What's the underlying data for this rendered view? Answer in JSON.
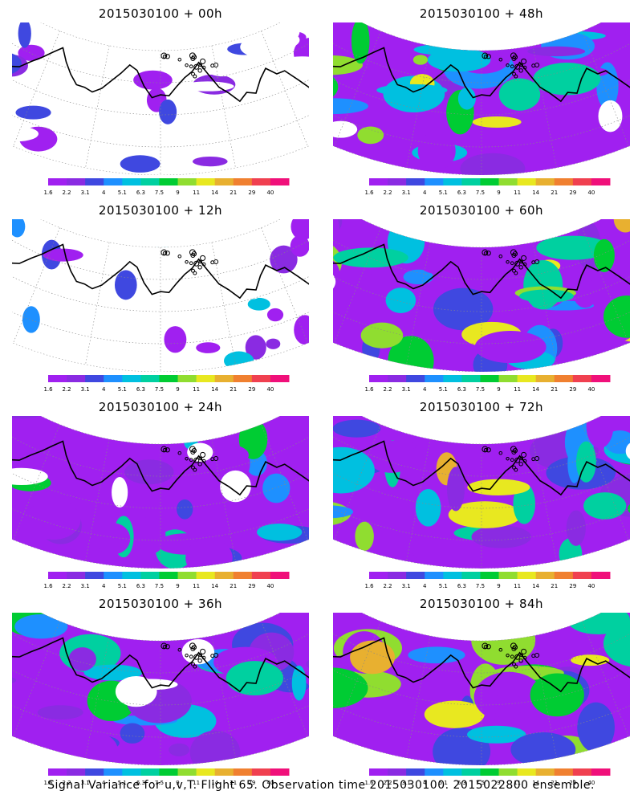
{
  "caption": "Signal Variance for u,v,T. Flight 65. Observation time 2015030100. 2015022800 ensemble.",
  "colorbar": {
    "levels": [
      "1.6",
      "2.2",
      "3.1",
      "4",
      "5.1",
      "6.3",
      "7.5",
      "9",
      "11",
      "14",
      "21",
      "29",
      "40"
    ],
    "colors": [
      "#a020f0",
      "#8a2be2",
      "#3f48e0",
      "#1e90ff",
      "#00c0e0",
      "#00d0a0",
      "#00cc33",
      "#90dd30",
      "#e8e820",
      "#e8b030",
      "#f08030",
      "#f04050",
      "#f0107a"
    ]
  },
  "panels": [
    {
      "id": "p00",
      "title": "2015030100 + 00h",
      "coverage": 0.25
    },
    {
      "id": "p48",
      "title": "2015030100 + 48h",
      "coverage": 0.85
    },
    {
      "id": "p12",
      "title": "2015030100 + 12h",
      "coverage": 0.35
    },
    {
      "id": "p60",
      "title": "2015030100 + 60h",
      "coverage": 0.9
    },
    {
      "id": "p24",
      "title": "2015030100 + 24h",
      "coverage": 0.6
    },
    {
      "id": "p72",
      "title": "2015030100 + 72h",
      "coverage": 0.95
    },
    {
      "id": "p36",
      "title": "2015030100 + 36h",
      "coverage": 0.7
    },
    {
      "id": "p84",
      "title": "2015030100 + 84h",
      "coverage": 0.97
    }
  ]
}
